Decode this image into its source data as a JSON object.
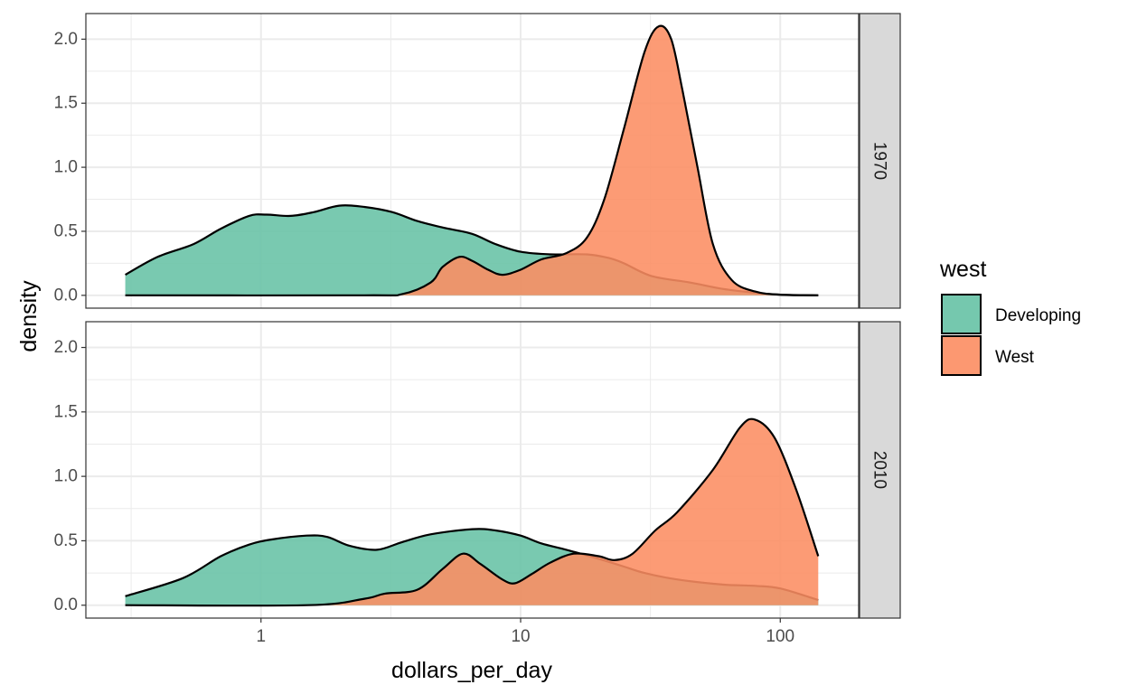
{
  "chart_data": {
    "type": "area",
    "subtype": "density",
    "xlabel": "dollars_per_day",
    "ylabel": "density",
    "x_scale": "log10",
    "x_ticks": [
      {
        "value": 1,
        "label": "1"
      },
      {
        "value": 10,
        "label": "10"
      },
      {
        "value": 100,
        "label": "100"
      }
    ],
    "y_ticks": [
      "0.0",
      "0.5",
      "1.0",
      "1.5",
      "2.0"
    ],
    "ylim": [
      -0.1,
      2.2
    ],
    "grid": true,
    "legend": {
      "title": "west",
      "position": "right",
      "entries": [
        {
          "label": "Developing",
          "color": "#66C2A5"
        },
        {
          "label": "West",
          "color": "#FC8D62"
        }
      ]
    },
    "panels": [
      {
        "label": "1970",
        "series": [
          {
            "name": "Developing",
            "color": "#66C2A5",
            "points": [
              [
                0.3,
                0.16
              ],
              [
                0.4,
                0.3
              ],
              [
                0.55,
                0.4
              ],
              [
                0.7,
                0.52
              ],
              [
                0.9,
                0.62
              ],
              [
                1.05,
                0.63
              ],
              [
                1.3,
                0.62
              ],
              [
                1.6,
                0.65
              ],
              [
                2.0,
                0.7
              ],
              [
                2.5,
                0.69
              ],
              [
                3.2,
                0.65
              ],
              [
                4.0,
                0.58
              ],
              [
                5.0,
                0.53
              ],
              [
                6.5,
                0.48
              ],
              [
                8.0,
                0.4
              ],
              [
                10.0,
                0.34
              ],
              [
                13.0,
                0.32
              ],
              [
                18.0,
                0.32
              ],
              [
                22.0,
                0.29
              ],
              [
                25.0,
                0.25
              ],
              [
                32.0,
                0.15
              ],
              [
                45.0,
                0.1
              ],
              [
                60.0,
                0.05
              ],
              [
                80.0,
                0.02
              ],
              [
                100.0,
                0.005
              ],
              [
                140.0,
                0.0
              ]
            ]
          },
          {
            "name": "West",
            "color": "#FC8D62",
            "points": [
              [
                0.3,
                0.0
              ],
              [
                2.5,
                0.0
              ],
              [
                3.5,
                0.01
              ],
              [
                4.5,
                0.1
              ],
              [
                5.0,
                0.22
              ],
              [
                5.8,
                0.3
              ],
              [
                6.5,
                0.27
              ],
              [
                7.5,
                0.2
              ],
              [
                8.5,
                0.16
              ],
              [
                10.0,
                0.2
              ],
              [
                12.0,
                0.28
              ],
              [
                15.0,
                0.33
              ],
              [
                18.0,
                0.45
              ],
              [
                21.0,
                0.75
              ],
              [
                25.0,
                1.3
              ],
              [
                30.0,
                1.9
              ],
              [
                34.0,
                2.1
              ],
              [
                38.0,
                2.0
              ],
              [
                42.0,
                1.6
              ],
              [
                48.0,
                1.0
              ],
              [
                55.0,
                0.4
              ],
              [
                65.0,
                0.12
              ],
              [
                80.0,
                0.03
              ],
              [
                100.0,
                0.005
              ],
              [
                140.0,
                0.0
              ]
            ]
          }
        ]
      },
      {
        "label": "2010",
        "series": [
          {
            "name": "Developing",
            "color": "#66C2A5",
            "points": [
              [
                0.3,
                0.07
              ],
              [
                0.5,
                0.21
              ],
              [
                0.7,
                0.38
              ],
              [
                0.9,
                0.47
              ],
              [
                1.1,
                0.51
              ],
              [
                1.5,
                0.54
              ],
              [
                1.8,
                0.53
              ],
              [
                2.2,
                0.46
              ],
              [
                2.8,
                0.43
              ],
              [
                3.5,
                0.49
              ],
              [
                4.5,
                0.55
              ],
              [
                6.5,
                0.59
              ],
              [
                8.0,
                0.58
              ],
              [
                10.0,
                0.54
              ],
              [
                12.0,
                0.48
              ],
              [
                15.0,
                0.43
              ],
              [
                20.0,
                0.36
              ],
              [
                25.0,
                0.3
              ],
              [
                30.0,
                0.25
              ],
              [
                40.0,
                0.2
              ],
              [
                60.0,
                0.16
              ],
              [
                80.0,
                0.15
              ],
              [
                100.0,
                0.13
              ],
              [
                140.0,
                0.04
              ]
            ]
          },
          {
            "name": "West",
            "color": "#FC8D62",
            "points": [
              [
                0.3,
                0.0
              ],
              [
                1.5,
                0.0
              ],
              [
                2.5,
                0.05
              ],
              [
                3.0,
                0.09
              ],
              [
                4.0,
                0.12
              ],
              [
                5.0,
                0.28
              ],
              [
                6.0,
                0.4
              ],
              [
                7.0,
                0.32
              ],
              [
                8.5,
                0.2
              ],
              [
                9.5,
                0.17
              ],
              [
                11.0,
                0.24
              ],
              [
                13.0,
                0.33
              ],
              [
                16.0,
                0.4
              ],
              [
                20.0,
                0.38
              ],
              [
                23.0,
                0.35
              ],
              [
                27.0,
                0.4
              ],
              [
                33.0,
                0.58
              ],
              [
                40.0,
                0.72
              ],
              [
                55.0,
                1.05
              ],
              [
                70.0,
                1.38
              ],
              [
                80.0,
                1.44
              ],
              [
                95.0,
                1.3
              ],
              [
                115.0,
                0.9
              ],
              [
                140.0,
                0.38
              ]
            ]
          }
        ]
      }
    ]
  }
}
